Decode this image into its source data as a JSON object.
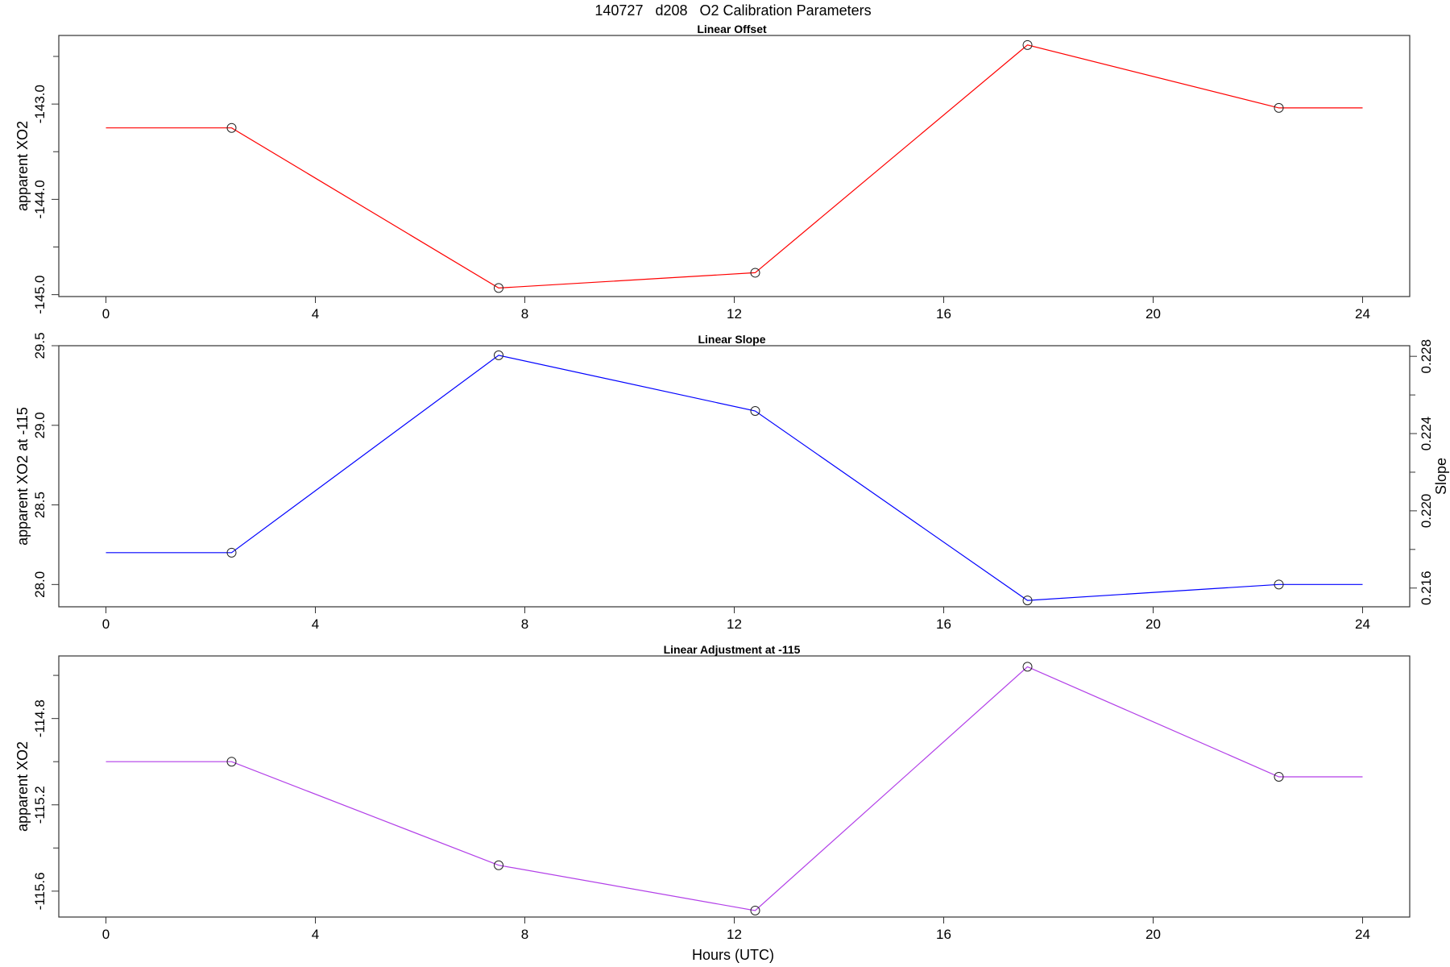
{
  "chart_data": {
    "title": "140727   d208   O2 Calibration Parameters",
    "xlabel": "Hours (UTC)",
    "x_ticks": [
      0,
      4,
      8,
      12,
      16,
      20,
      24
    ],
    "xlim": [
      -0.9,
      24.9
    ],
    "panels": [
      {
        "type": "line",
        "title": "Linear Offset",
        "ylabel": "apparent XO2",
        "color": "#ff0000",
        "ylim": [
          -145.02,
          -142.28
        ],
        "y_ticks": [
          -143.0,
          -144.0,
          -145.0
        ],
        "y_minor_ticks": [
          -142.5,
          -143.5,
          -144.5
        ],
        "line": [
          {
            "x": 0,
            "y": -143.25
          },
          {
            "x": 2.4,
            "y": -143.25
          },
          {
            "x": 7.5,
            "y": -144.93
          },
          {
            "x": 12.4,
            "y": -144.77
          },
          {
            "x": 17.6,
            "y": -142.38
          },
          {
            "x": 22.4,
            "y": -143.04
          },
          {
            "x": 24,
            "y": -143.04
          }
        ],
        "points": [
          {
            "x": 2.4,
            "y": -143.25
          },
          {
            "x": 7.5,
            "y": -144.93
          },
          {
            "x": 12.4,
            "y": -144.77
          },
          {
            "x": 17.6,
            "y": -142.38
          },
          {
            "x": 22.4,
            "y": -143.04
          }
        ]
      },
      {
        "type": "line",
        "title": "Linear Slope",
        "ylabel": "apparent XO2 at -115",
        "right_ylabel": "Slope",
        "color": "#0000ff",
        "ylim": [
          27.86,
          29.5
        ],
        "y_ticks": [
          28.0,
          28.5,
          29.0,
          29.5
        ],
        "right_ylim": [
          0.21503,
          0.22855
        ],
        "right_y_ticks": [
          0.216,
          0.22,
          0.224,
          0.228
        ],
        "right_y_minor_ticks": [
          0.218,
          0.222,
          0.226
        ],
        "line": [
          {
            "x": 0,
            "y": 28.2
          },
          {
            "x": 2.4,
            "y": 28.2
          },
          {
            "x": 7.5,
            "y": 29.44
          },
          {
            "x": 12.4,
            "y": 29.09
          },
          {
            "x": 17.6,
            "y": 27.9
          },
          {
            "x": 22.4,
            "y": 28.0
          },
          {
            "x": 24,
            "y": 28.0
          }
        ],
        "points": [
          {
            "x": 2.4,
            "y": 28.2
          },
          {
            "x": 7.5,
            "y": 29.44
          },
          {
            "x": 12.4,
            "y": 29.09
          },
          {
            "x": 17.6,
            "y": 27.9
          },
          {
            "x": 22.4,
            "y": 28.0
          }
        ]
      },
      {
        "type": "line",
        "title": "Linear Adjustment at -115",
        "ylabel": "apparent XO2",
        "color": "#b23fe8",
        "ylim": [
          -115.72,
          -114.51
        ],
        "y_ticks": [
          -114.8,
          -115.2,
          -115.6
        ],
        "y_minor_ticks": [
          -114.6,
          -115.0,
          -115.4
        ],
        "line": [
          {
            "x": 0,
            "y": -115.0
          },
          {
            "x": 2.4,
            "y": -115.0
          },
          {
            "x": 7.5,
            "y": -115.48
          },
          {
            "x": 12.4,
            "y": -115.69
          },
          {
            "x": 17.6,
            "y": -114.56
          },
          {
            "x": 22.4,
            "y": -115.07
          },
          {
            "x": 24,
            "y": -115.07
          }
        ],
        "points": [
          {
            "x": 2.4,
            "y": -115.0
          },
          {
            "x": 7.5,
            "y": -115.48
          },
          {
            "x": 12.4,
            "y": -115.69
          },
          {
            "x": 17.6,
            "y": -114.56
          },
          {
            "x": 22.4,
            "y": -115.07
          }
        ]
      }
    ]
  }
}
